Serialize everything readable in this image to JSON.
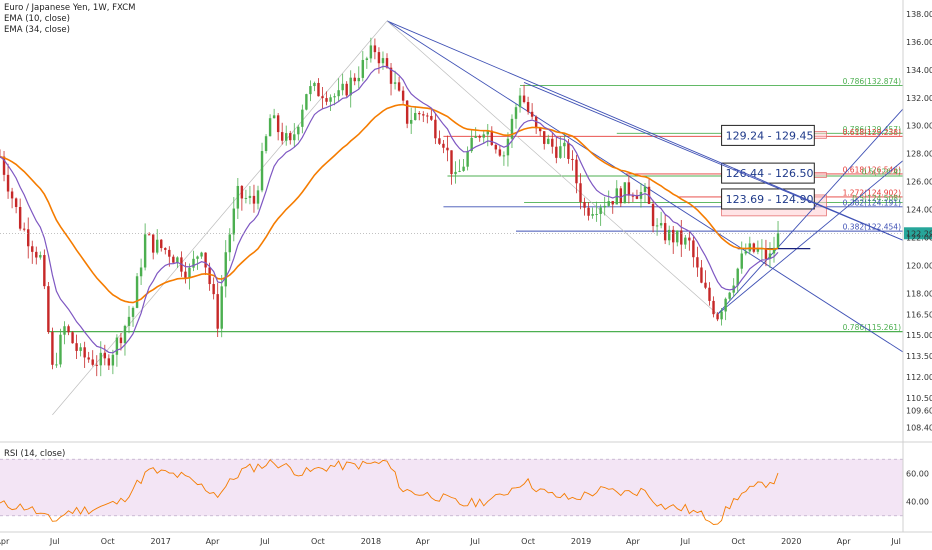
{
  "chart_data": {
    "type": "candlestick",
    "title": "Euro / Japanese Yen, 1W, FXCM",
    "indicator_labels": [
      "EMA (10, close)",
      "EMA (34, close)"
    ],
    "rsi_label": "RSI (14, close)",
    "price_axis": {
      "ylim": [
        107.5,
        139.0
      ],
      "ticks": [
        "138.000",
        "136.000",
        "134.000",
        "132.000",
        "130.000",
        "128.000",
        "126.000",
        "124.000",
        "122.000",
        "120.000",
        "118.000",
        "116.500",
        "115.000",
        "113.500",
        "112.000",
        "110.500",
        "109.600",
        "108.400"
      ],
      "tick_values": [
        138,
        136,
        134,
        132,
        130,
        128,
        126,
        124,
        122,
        120,
        118,
        116.5,
        115,
        113.5,
        112,
        110.5,
        109.6,
        108.4
      ],
      "last_price_label": "122.299",
      "last_price": 122.299
    },
    "rsi_axis": {
      "ticks": [
        "60.00",
        "40.00"
      ],
      "tick_values": [
        60,
        40
      ],
      "ylim": [
        20,
        80
      ],
      "bands": [
        70,
        30
      ]
    },
    "time_axis": {
      "labels": [
        "Apr",
        "Jul",
        "Oct",
        "2017",
        "Apr",
        "Jul",
        "Oct",
        "2018",
        "Apr",
        "Jul",
        "Oct",
        "2019",
        "Apr",
        "Jul",
        "Oct",
        "2020",
        "Apr",
        "Jul"
      ],
      "range": [
        "2016-03-28",
        "2020-07-13"
      ]
    },
    "series": [
      {
        "name": "EMA (10, close)",
        "color": "#7e57c2"
      },
      {
        "name": "EMA (34, close)",
        "color": "#f57c00"
      }
    ],
    "candle_anchors": [
      [
        "2016-03-28",
        127.8
      ],
      [
        "2016-05-02",
        123.0
      ],
      [
        "2016-06-06",
        120.5
      ],
      [
        "2016-06-27",
        112.5
      ],
      [
        "2016-07-18",
        115.5
      ],
      [
        "2016-08-15",
        113.5
      ],
      [
        "2016-09-26",
        113.0
      ],
      [
        "2016-10-17",
        114.5
      ],
      [
        "2016-11-14",
        117.0
      ],
      [
        "2016-12-05",
        122.0
      ],
      [
        "2016-12-19",
        121.5
      ],
      [
        "2017-01-16",
        121.0
      ],
      [
        "2017-02-20",
        119.5
      ],
      [
        "2017-03-13",
        121.5
      ],
      [
        "2017-04-10",
        116.0
      ],
      [
        "2017-04-24",
        121.0
      ],
      [
        "2017-05-15",
        125.0
      ],
      [
        "2017-06-12",
        124.5
      ],
      [
        "2017-07-10",
        130.5
      ],
      [
        "2017-08-14",
        128.5
      ],
      [
        "2017-09-11",
        132.5
      ],
      [
        "2017-10-09",
        132.5
      ],
      [
        "2017-11-06",
        132.0
      ],
      [
        "2017-12-04",
        133.5
      ],
      [
        "2018-01-08",
        135.5
      ],
      [
        "2018-02-05",
        133.5
      ],
      [
        "2018-03-05",
        130.5
      ],
      [
        "2018-04-02",
        131.0
      ],
      [
        "2018-05-07",
        129.0
      ],
      [
        "2018-05-28",
        126.0
      ],
      [
        "2018-06-18",
        128.0
      ],
      [
        "2018-07-16",
        130.0
      ],
      [
        "2018-08-20",
        128.0
      ],
      [
        "2018-09-17",
        132.5
      ],
      [
        "2018-10-15",
        129.5
      ],
      [
        "2018-11-12",
        128.5
      ],
      [
        "2018-12-10",
        128.0
      ],
      [
        "2019-01-07",
        124.0
      ],
      [
        "2019-02-04",
        124.5
      ],
      [
        "2019-03-04",
        125.0
      ],
      [
        "2019-04-01",
        125.5
      ],
      [
        "2019-04-22",
        125.0
      ],
      [
        "2019-05-13",
        122.5
      ],
      [
        "2019-06-10",
        122.0
      ],
      [
        "2019-07-08",
        121.5
      ],
      [
        "2019-07-29",
        118.5
      ],
      [
        "2019-08-26",
        116.5
      ],
      [
        "2019-09-16",
        118.5
      ],
      [
        "2019-10-14",
        121.0
      ],
      [
        "2019-11-04",
        121.0
      ],
      [
        "2019-11-25",
        120.5
      ],
      [
        "2019-12-09",
        122.3
      ]
    ],
    "rsi_anchors": [
      [
        "2016-03-28",
        38
      ],
      [
        "2016-05-16",
        36
      ],
      [
        "2016-06-27",
        26
      ],
      [
        "2016-07-25",
        33
      ],
      [
        "2016-09-05",
        35
      ],
      [
        "2016-10-24",
        40
      ],
      [
        "2016-12-12",
        62
      ],
      [
        "2017-02-06",
        58
      ],
      [
        "2017-04-10",
        45
      ],
      [
        "2017-05-22",
        62
      ],
      [
        "2017-07-17",
        68
      ],
      [
        "2017-09-04",
        60
      ],
      [
        "2017-10-23",
        65
      ],
      [
        "2017-12-18",
        66
      ],
      [
        "2018-01-29",
        68
      ],
      [
        "2018-02-26",
        48
      ],
      [
        "2018-04-23",
        44
      ],
      [
        "2018-06-11",
        38
      ],
      [
        "2018-08-06",
        42
      ],
      [
        "2018-09-24",
        55
      ],
      [
        "2018-11-05",
        45
      ],
      [
        "2018-12-17",
        42
      ],
      [
        "2019-02-04",
        48
      ],
      [
        "2019-03-18",
        46
      ],
      [
        "2019-04-22",
        48
      ],
      [
        "2019-05-20",
        37
      ],
      [
        "2019-07-01",
        35
      ],
      [
        "2019-08-26",
        26
      ],
      [
        "2019-09-30",
        44
      ],
      [
        "2019-11-11",
        52
      ],
      [
        "2019-12-09",
        57
      ]
    ],
    "fibonacci_levels": [
      {
        "label": "0.786(132.874)",
        "value": 132.874,
        "color": "#4caf50"
      },
      {
        "label": "0.786(129.457)",
        "value": 129.457,
        "color": "#4caf50"
      },
      {
        "label": "0.618(129.238)",
        "value": 129.238,
        "color": "#e53935"
      },
      {
        "label": "0.618(126.546)",
        "value": 126.546,
        "color": "#e53935"
      },
      {
        "label": "0.5(126.4)",
        "value": 126.4,
        "color": "#4caf50"
      },
      {
        "label": "1.272(124.902)",
        "value": 124.902,
        "color": "#e53935"
      },
      {
        "label": "0.5(124.508)",
        "value": 124.508,
        "color": "#4caf50"
      },
      {
        "label": "0.382(124.191)",
        "value": 124.191,
        "color": "#3f51b5"
      },
      {
        "label": "0.382(122.454)",
        "value": 122.454,
        "color": "#3f51b5"
      },
      {
        "label": "0.786(115.261)",
        "value": 115.261,
        "color": "#4caf50"
      }
    ],
    "target_zones": [
      {
        "label": "129.24 - 129.45",
        "low": 129.24,
        "high": 129.45
      },
      {
        "label": "126.44 - 126.50",
        "low": 126.44,
        "high": 126.5
      },
      {
        "label": "123.69 - 124.90",
        "low": 123.69,
        "high": 124.9
      }
    ],
    "trendlines": [
      {
        "from": [
          "2018-01-29",
          137.5
        ],
        "to": [
          "2020-07-13",
          121.8
        ],
        "color": "#3f51b5"
      },
      {
        "from": [
          "2018-01-29",
          137.5
        ],
        "to": [
          "2020-07-13",
          113.8
        ],
        "color": "#3f51b5"
      },
      {
        "from": [
          "2018-09-24",
          133.1
        ],
        "to": [
          "2020-07-13",
          121.8
        ],
        "color": "#3f51b5"
      },
      {
        "from": [
          "2019-08-26",
          116.5
        ],
        "to": [
          "2020-07-13",
          131.2
        ],
        "color": "#3f51b5"
      },
      {
        "from": [
          "2019-08-26",
          116.5
        ],
        "to": [
          "2020-07-13",
          127.5
        ],
        "color": "#3f51b5"
      },
      {
        "from": [
          "2016-06-27",
          109.3
        ],
        "to": [
          "2018-01-29",
          137.5
        ],
        "color": "#bdbdbd"
      },
      {
        "from": [
          "2018-01-29",
          137.5
        ],
        "to": [
          "2019-08-26",
          116.5
        ],
        "color": "#bdbdbd"
      }
    ],
    "grid": false,
    "colors": {
      "bull": "#4caf50",
      "bear": "#c62828",
      "ema10": "#7e57c2",
      "ema34": "#f57c00",
      "rsi": "#f57c00",
      "rsi_band_fill": "#f3e5f5",
      "trend": "#3f51b5"
    }
  }
}
